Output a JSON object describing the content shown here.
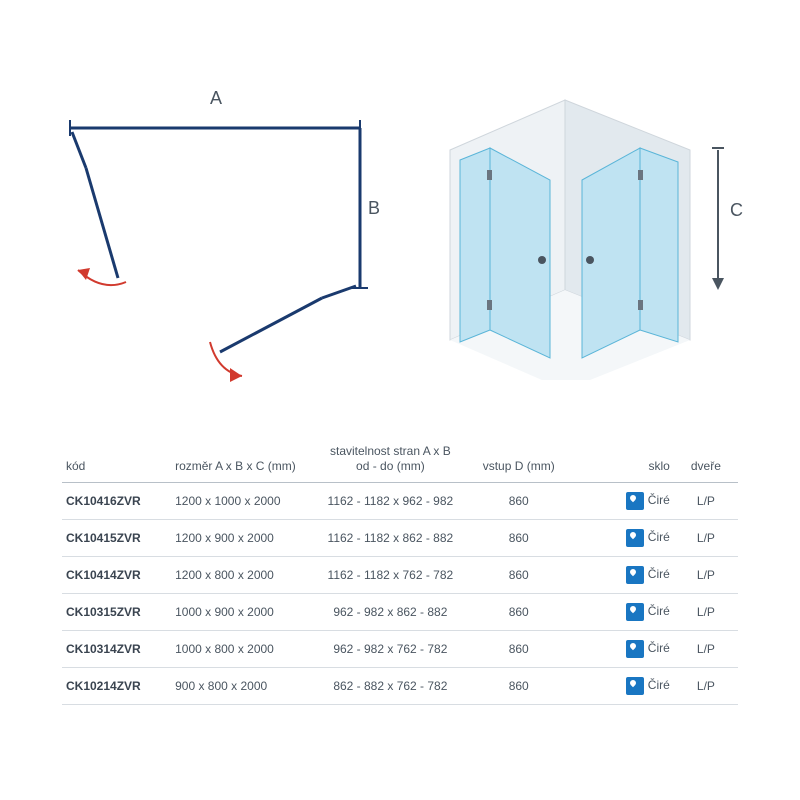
{
  "diagram": {
    "label_a": "A",
    "label_b": "B",
    "label_c": "C",
    "colors": {
      "stroke_plan": "#1a3a6e",
      "arrow_red": "#d13a2e",
      "glass_fill": "#bfe3f2",
      "glass_stroke": "#5ab5d8",
      "wall": "#e8eef2",
      "dim_arrow": "#4a5560"
    }
  },
  "table": {
    "headers": {
      "kod": "kód",
      "rozmer": "rozměr A x B x C (mm)",
      "stav1": "stavitelnost stran A x B",
      "stav2": "od - do (mm)",
      "vstup": "vstup D (mm)",
      "sklo": "sklo",
      "dvere": "dveře"
    },
    "rows": [
      {
        "kod": "CK10416ZVR",
        "rozmer": "1200 x 1000 x 2000",
        "stav": "1162 - 1182 x 962 - 982",
        "vstup": "860",
        "sklo": "Čiré",
        "dvere": "L/P"
      },
      {
        "kod": "CK10415ZVR",
        "rozmer": "1200 x 900 x 2000",
        "stav": "1162 - 1182 x 862 - 882",
        "vstup": "860",
        "sklo": "Čiré",
        "dvere": "L/P"
      },
      {
        "kod": "CK10414ZVR",
        "rozmer": "1200 x 800 x 2000",
        "stav": "1162 - 1182 x 762 - 782",
        "vstup": "860",
        "sklo": "Čiré",
        "dvere": "L/P"
      },
      {
        "kod": "CK10315ZVR",
        "rozmer": "1000 x 900 x 2000",
        "stav": "962 - 982 x 862 - 882",
        "vstup": "860",
        "sklo": "Čiré",
        "dvere": "L/P"
      },
      {
        "kod": "CK10314ZVR",
        "rozmer": "1000 x 800 x 2000",
        "stav": "962 - 982 x 762 - 782",
        "vstup": "860",
        "sklo": "Čiré",
        "dvere": "L/P"
      },
      {
        "kod": "CK10214ZVR",
        "rozmer": "900 x 800 x 2000",
        "stav": "862 - 882 x 762 - 782",
        "vstup": "860",
        "sklo": "Čiré",
        "dvere": "L/P"
      }
    ]
  }
}
